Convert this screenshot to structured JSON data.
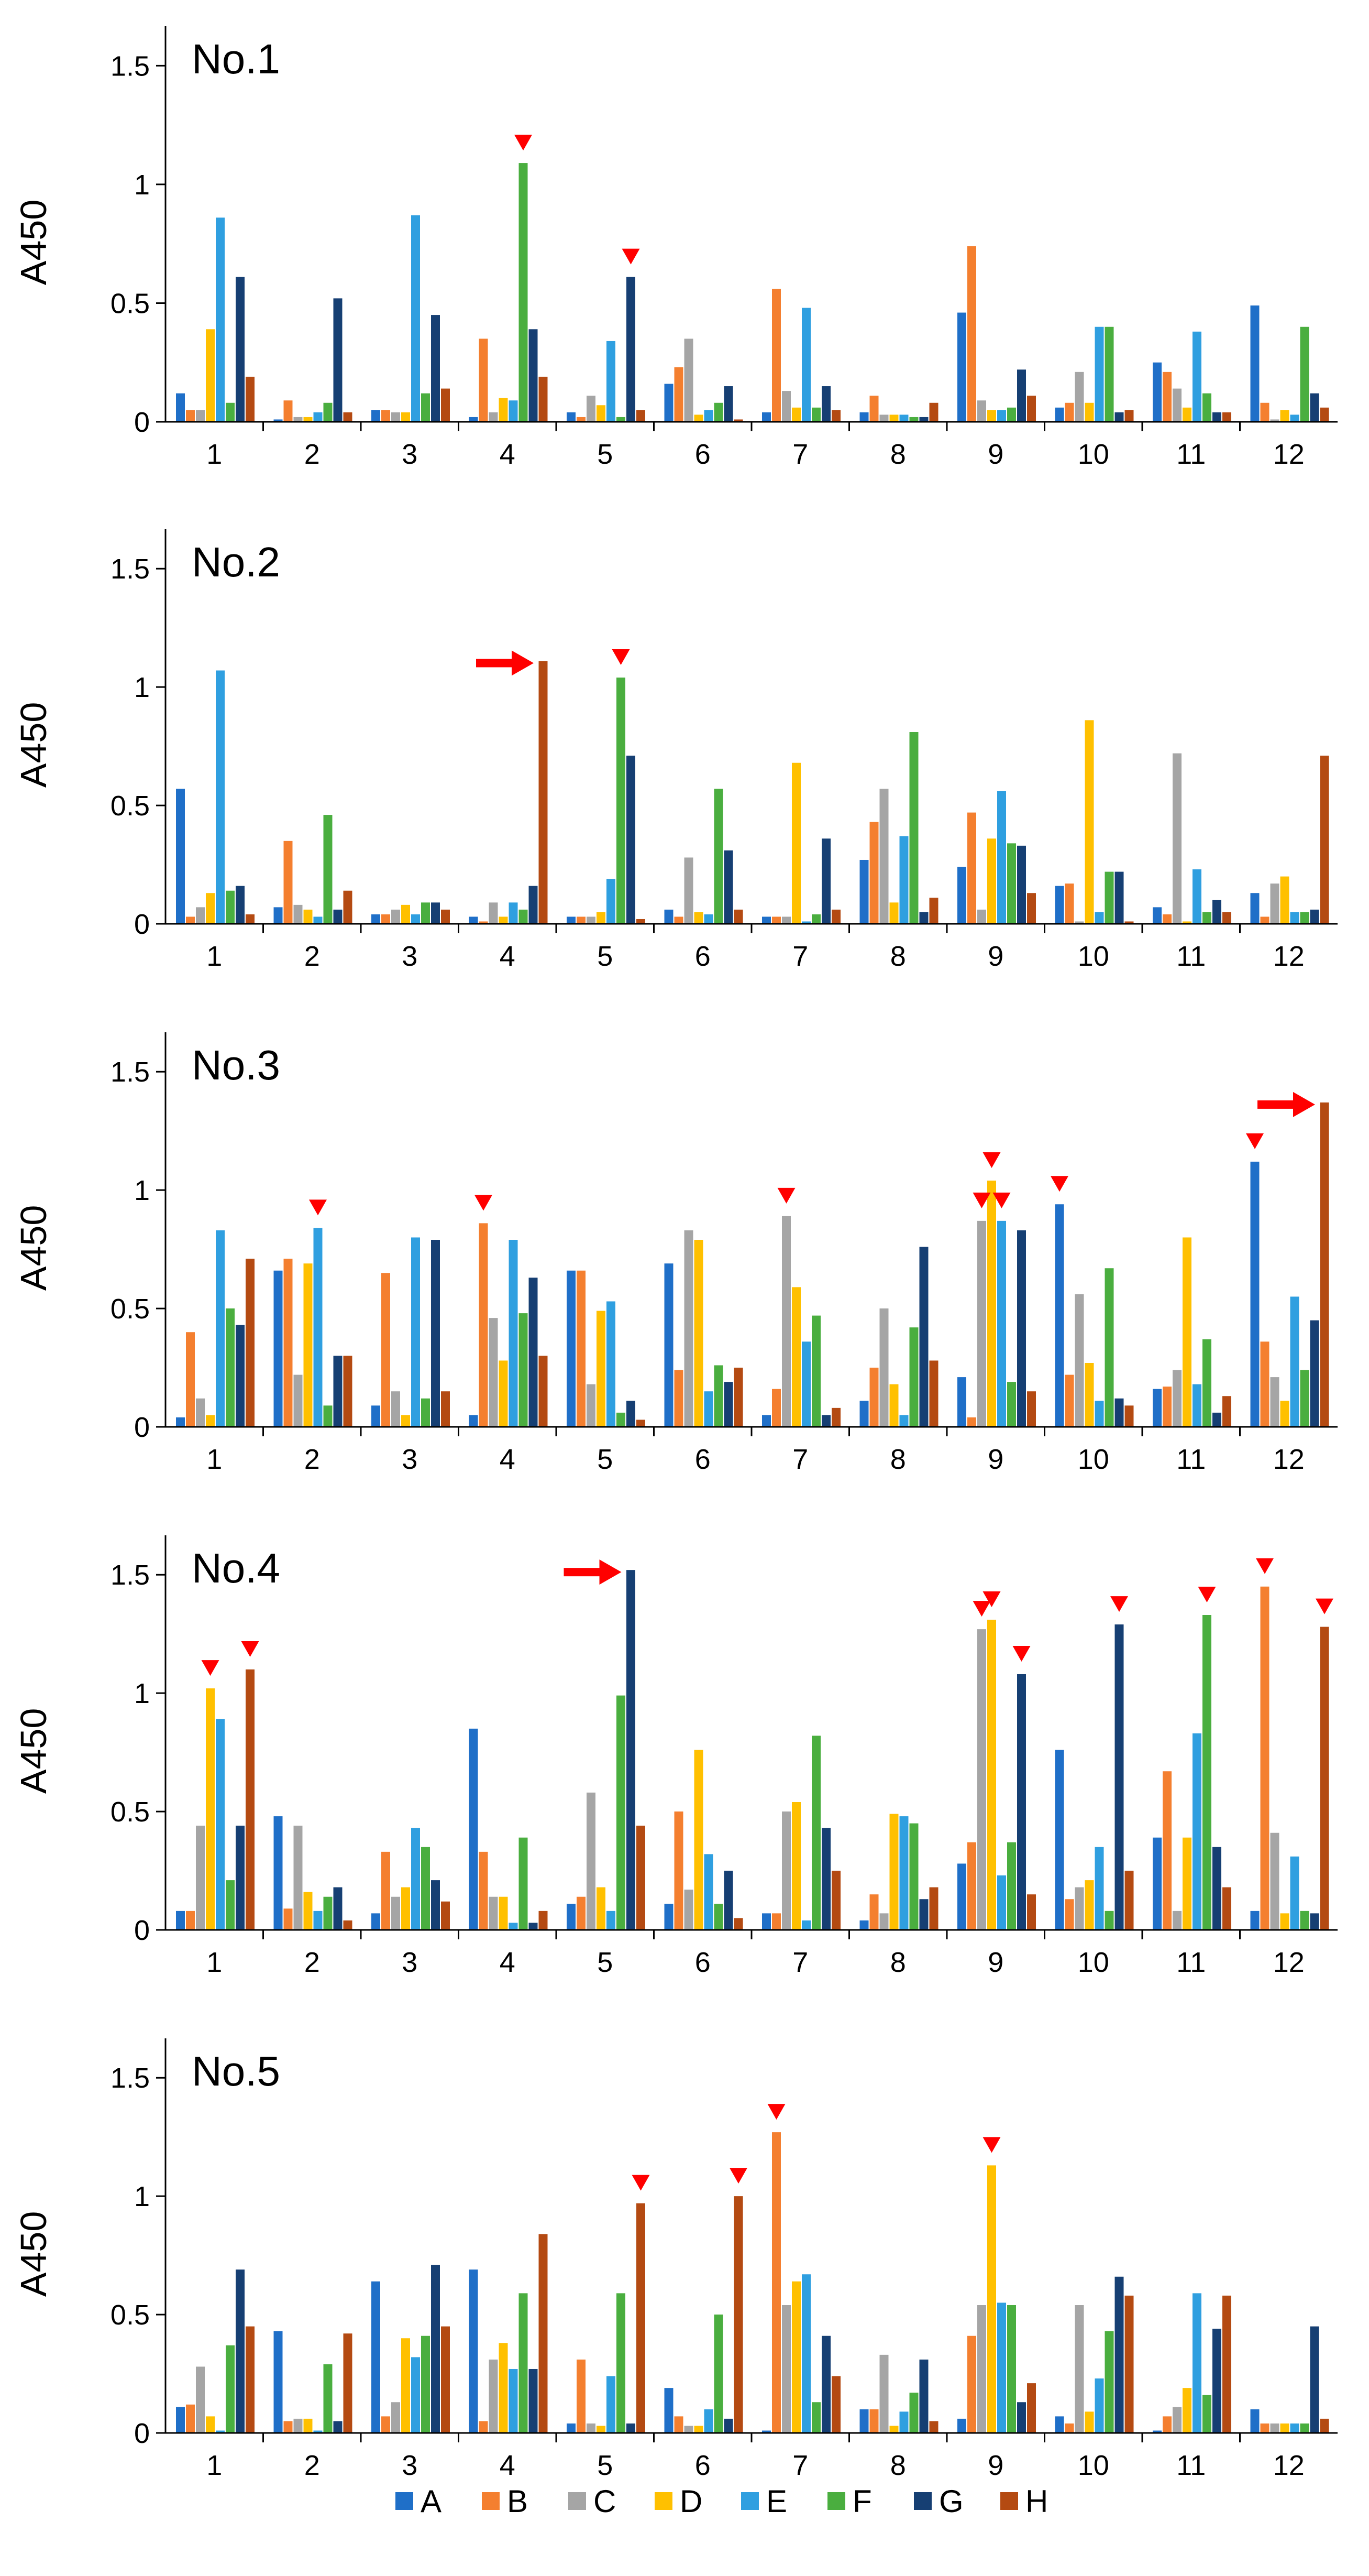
{
  "colors": {
    "A": "#1f6fc8",
    "B": "#f47f2f",
    "C": "#a5a5a5",
    "D": "#ffc000",
    "E": "#2f9fe0",
    "F": "#4aae3f",
    "G": "#163f73",
    "H": "#b44a12",
    "marker": "#ff0000",
    "axis": "#000000"
  },
  "chart_data": [
    {
      "type": "bar",
      "title": "No.1",
      "ylabel": "A450",
      "ylim": [
        0,
        1.6
      ],
      "yticks": [
        "0",
        "0.5",
        "1",
        "1.5"
      ],
      "categories": [
        "1",
        "2",
        "3",
        "4",
        "5",
        "6",
        "7",
        "8",
        "9",
        "10",
        "11",
        "12"
      ],
      "series": [
        {
          "name": "A",
          "values": [
            0.12,
            0.01,
            0.05,
            0.02,
            0.04,
            0.16,
            0.04,
            0.04,
            0.46,
            0.06,
            0.25,
            0.49
          ]
        },
        {
          "name": "B",
          "values": [
            0.05,
            0.09,
            0.05,
            0.35,
            0.02,
            0.23,
            0.56,
            0.11,
            0.74,
            0.08,
            0.21,
            0.08
          ]
        },
        {
          "name": "C",
          "values": [
            0.05,
            0.02,
            0.04,
            0.04,
            0.11,
            0.35,
            0.13,
            0.03,
            0.09,
            0.21,
            0.14,
            0.01
          ]
        },
        {
          "name": "D",
          "values": [
            0.39,
            0.02,
            0.04,
            0.1,
            0.07,
            0.03,
            0.06,
            0.03,
            0.05,
            0.08,
            0.06,
            0.05
          ]
        },
        {
          "name": "E",
          "values": [
            0.86,
            0.04,
            0.87,
            0.09,
            0.34,
            0.05,
            0.48,
            0.03,
            0.05,
            0.4,
            0.38,
            0.03
          ]
        },
        {
          "name": "F",
          "values": [
            0.08,
            0.08,
            0.12,
            1.09,
            0.02,
            0.08,
            0.06,
            0.02,
            0.06,
            0.4,
            0.12,
            0.4
          ]
        },
        {
          "name": "G",
          "values": [
            0.61,
            0.52,
            0.45,
            0.39,
            0.61,
            0.15,
            0.15,
            0.02,
            0.22,
            0.04,
            0.04,
            0.12
          ]
        },
        {
          "name": "H",
          "values": [
            0.19,
            0.04,
            0.14,
            0.19,
            0.05,
            0.01,
            0.05,
            0.08,
            0.11,
            0.05,
            0.04,
            0.06
          ]
        }
      ],
      "markers": [
        {
          "type": "triangle",
          "category": "4",
          "series": "F"
        },
        {
          "type": "triangle",
          "category": "5",
          "series": "G"
        }
      ]
    },
    {
      "type": "bar",
      "title": "No.2",
      "ylabel": "A450",
      "ylim": [
        0,
        1.6
      ],
      "yticks": [
        "0",
        "0.5",
        "1",
        "1.5"
      ],
      "categories": [
        "1",
        "2",
        "3",
        "4",
        "5",
        "6",
        "7",
        "8",
        "9",
        "10",
        "11",
        "12"
      ],
      "series": [
        {
          "name": "A",
          "values": [
            0.57,
            0.07,
            0.04,
            0.03,
            0.03,
            0.06,
            0.03,
            0.27,
            0.24,
            0.16,
            0.07,
            0.13
          ]
        },
        {
          "name": "B",
          "values": [
            0.03,
            0.35,
            0.04,
            0.01,
            0.03,
            0.03,
            0.03,
            0.43,
            0.47,
            0.17,
            0.04,
            0.03
          ]
        },
        {
          "name": "C",
          "values": [
            0.07,
            0.08,
            0.06,
            0.09,
            0.03,
            0.28,
            0.03,
            0.57,
            0.06,
            0.01,
            0.72,
            0.17
          ]
        },
        {
          "name": "D",
          "values": [
            0.13,
            0.06,
            0.08,
            0.03,
            0.05,
            0.05,
            0.68,
            0.09,
            0.36,
            0.86,
            0.01,
            0.2
          ]
        },
        {
          "name": "E",
          "values": [
            1.07,
            0.03,
            0.04,
            0.09,
            0.19,
            0.04,
            0.01,
            0.37,
            0.56,
            0.05,
            0.23,
            0.05
          ]
        },
        {
          "name": "F",
          "values": [
            0.14,
            0.46,
            0.09,
            0.06,
            1.04,
            0.57,
            0.04,
            0.81,
            0.34,
            0.22,
            0.05,
            0.05
          ]
        },
        {
          "name": "G",
          "values": [
            0.16,
            0.06,
            0.09,
            0.16,
            0.71,
            0.31,
            0.36,
            0.05,
            0.33,
            0.22,
            0.1,
            0.06
          ]
        },
        {
          "name": "H",
          "values": [
            0.04,
            0.14,
            0.06,
            1.11,
            0.02,
            0.06,
            0.06,
            0.11,
            0.13,
            0.01,
            0.05,
            0.71
          ]
        }
      ],
      "markers": [
        {
          "type": "arrow",
          "category": "4",
          "series": "H"
        },
        {
          "type": "triangle",
          "category": "5",
          "series": "F"
        }
      ]
    },
    {
      "type": "bar",
      "title": "No.3",
      "ylabel": "A450",
      "ylim": [
        0,
        1.6
      ],
      "yticks": [
        "0",
        "0.5",
        "1",
        "1.5"
      ],
      "categories": [
        "1",
        "2",
        "3",
        "4",
        "5",
        "6",
        "7",
        "8",
        "9",
        "10",
        "11",
        "12"
      ],
      "series": [
        {
          "name": "A",
          "values": [
            0.04,
            0.66,
            0.09,
            0.05,
            0.66,
            0.69,
            0.05,
            0.11,
            0.21,
            0.94,
            0.16,
            1.12
          ]
        },
        {
          "name": "B",
          "values": [
            0.4,
            0.71,
            0.65,
            0.86,
            0.66,
            0.24,
            0.16,
            0.25,
            0.04,
            0.22,
            0.17,
            0.36
          ]
        },
        {
          "name": "C",
          "values": [
            0.12,
            0.22,
            0.15,
            0.46,
            0.18,
            0.83,
            0.89,
            0.5,
            0.87,
            0.56,
            0.24,
            0.21
          ]
        },
        {
          "name": "D",
          "values": [
            0.05,
            0.69,
            0.05,
            0.28,
            0.49,
            0.79,
            0.59,
            0.18,
            1.04,
            0.27,
            0.8,
            0.11
          ]
        },
        {
          "name": "E",
          "values": [
            0.83,
            0.84,
            0.8,
            0.79,
            0.53,
            0.15,
            0.36,
            0.05,
            0.87,
            0.11,
            0.18,
            0.55
          ]
        },
        {
          "name": "F",
          "values": [
            0.5,
            0.09,
            0.12,
            0.48,
            0.06,
            0.26,
            0.47,
            0.42,
            0.19,
            0.67,
            0.37,
            0.24
          ]
        },
        {
          "name": "G",
          "values": [
            0.43,
            0.3,
            0.79,
            0.63,
            0.11,
            0.19,
            0.05,
            0.76,
            0.83,
            0.12,
            0.06,
            0.45
          ]
        },
        {
          "name": "H",
          "values": [
            0.71,
            0.3,
            0.15,
            0.3,
            0.03,
            0.25,
            0.08,
            0.28,
            0.15,
            0.09,
            0.13,
            1.37
          ]
        }
      ],
      "markers": [
        {
          "type": "triangle",
          "category": "2",
          "series": "E"
        },
        {
          "type": "triangle",
          "category": "4",
          "series": "B"
        },
        {
          "type": "triangle",
          "category": "7",
          "series": "C"
        },
        {
          "type": "triangle",
          "category": "9",
          "series": "C"
        },
        {
          "type": "triangle",
          "category": "9",
          "series": "D"
        },
        {
          "type": "triangle",
          "category": "9",
          "series": "E"
        },
        {
          "type": "triangle",
          "category": "10",
          "series": "A"
        },
        {
          "type": "triangle",
          "category": "12",
          "series": "A"
        },
        {
          "type": "arrow",
          "category": "12",
          "series": "H"
        }
      ]
    },
    {
      "type": "bar",
      "title": "No.4",
      "ylabel": "A450",
      "ylim": [
        0,
        1.6
      ],
      "yticks": [
        "0",
        "0.5",
        "1",
        "1.5"
      ],
      "categories": [
        "1",
        "2",
        "3",
        "4",
        "5",
        "6",
        "7",
        "8",
        "9",
        "10",
        "11",
        "12"
      ],
      "series": [
        {
          "name": "A",
          "values": [
            0.08,
            0.48,
            0.07,
            0.85,
            0.11,
            0.11,
            0.07,
            0.04,
            0.28,
            0.76,
            0.39,
            0.08
          ]
        },
        {
          "name": "B",
          "values": [
            0.08,
            0.09,
            0.33,
            0.33,
            0.14,
            0.5,
            0.07,
            0.15,
            0.37,
            0.13,
            0.67,
            1.45
          ]
        },
        {
          "name": "C",
          "values": [
            0.44,
            0.44,
            0.14,
            0.14,
            0.58,
            0.17,
            0.5,
            0.07,
            1.27,
            0.18,
            0.08,
            0.41
          ]
        },
        {
          "name": "D",
          "values": [
            1.02,
            0.16,
            0.18,
            0.14,
            0.18,
            0.76,
            0.54,
            0.49,
            1.31,
            0.21,
            0.39,
            0.07
          ]
        },
        {
          "name": "E",
          "values": [
            0.89,
            0.08,
            0.43,
            0.03,
            0.08,
            0.32,
            0.04,
            0.48,
            0.23,
            0.35,
            0.83,
            0.31
          ]
        },
        {
          "name": "F",
          "values": [
            0.21,
            0.14,
            0.35,
            0.39,
            0.99,
            0.11,
            0.82,
            0.45,
            0.37,
            0.08,
            1.33,
            0.08
          ]
        },
        {
          "name": "G",
          "values": [
            0.44,
            0.18,
            0.21,
            0.03,
            1.52,
            0.25,
            0.43,
            0.13,
            1.08,
            1.29,
            0.35,
            0.07
          ]
        },
        {
          "name": "H",
          "values": [
            1.1,
            0.04,
            0.12,
            0.08,
            0.44,
            0.05,
            0.25,
            0.18,
            0.15,
            0.25,
            0.18,
            1.28
          ]
        }
      ],
      "markers": [
        {
          "type": "triangle",
          "category": "1",
          "series": "D"
        },
        {
          "type": "triangle",
          "category": "1",
          "series": "H"
        },
        {
          "type": "arrow",
          "category": "5",
          "series": "G"
        },
        {
          "type": "triangle",
          "category": "9",
          "series": "C"
        },
        {
          "type": "triangle",
          "category": "9",
          "series": "D"
        },
        {
          "type": "triangle",
          "category": "9",
          "series": "G"
        },
        {
          "type": "triangle",
          "category": "10",
          "series": "G"
        },
        {
          "type": "triangle",
          "category": "11",
          "series": "F"
        },
        {
          "type": "triangle",
          "category": "12",
          "series": "B"
        },
        {
          "type": "triangle",
          "category": "12",
          "series": "H"
        }
      ]
    },
    {
      "type": "bar",
      "title": "No.5",
      "ylabel": "A450",
      "ylim": [
        0,
        1.6
      ],
      "yticks": [
        "0",
        "0.5",
        "1",
        "1.5"
      ],
      "categories": [
        "1",
        "2",
        "3",
        "4",
        "5",
        "6",
        "7",
        "8",
        "9",
        "10",
        "11",
        "12"
      ],
      "series": [
        {
          "name": "A",
          "values": [
            0.11,
            0.43,
            0.64,
            0.69,
            0.04,
            0.19,
            0.01,
            0.1,
            0.06,
            0.07,
            0.01,
            0.1
          ]
        },
        {
          "name": "B",
          "values": [
            0.12,
            0.05,
            0.07,
            0.05,
            0.31,
            0.07,
            1.27,
            0.1,
            0.41,
            0.04,
            0.07,
            0.04
          ]
        },
        {
          "name": "C",
          "values": [
            0.28,
            0.06,
            0.13,
            0.31,
            0.04,
            0.03,
            0.54,
            0.33,
            0.54,
            0.54,
            0.11,
            0.04
          ]
        },
        {
          "name": "D",
          "values": [
            0.07,
            0.06,
            0.4,
            0.38,
            0.03,
            0.03,
            0.64,
            0.03,
            1.13,
            0.09,
            0.19,
            0.04
          ]
        },
        {
          "name": "E",
          "values": [
            0.01,
            0.01,
            0.32,
            0.27,
            0.24,
            0.1,
            0.67,
            0.09,
            0.55,
            0.23,
            0.59,
            0.04
          ]
        },
        {
          "name": "F",
          "values": [
            0.37,
            0.29,
            0.41,
            0.59,
            0.59,
            0.5,
            0.13,
            0.17,
            0.54,
            0.43,
            0.16,
            0.04
          ]
        },
        {
          "name": "G",
          "values": [
            0.69,
            0.05,
            0.71,
            0.27,
            0.04,
            0.06,
            0.41,
            0.31,
            0.13,
            0.66,
            0.44,
            0.45
          ]
        },
        {
          "name": "H",
          "values": [
            0.45,
            0.42,
            0.45,
            0.84,
            0.97,
            1.0,
            0.24,
            0.05,
            0.21,
            0.58,
            0.58,
            0.06
          ]
        }
      ],
      "markers": [
        {
          "type": "triangle",
          "category": "5",
          "series": "H"
        },
        {
          "type": "triangle",
          "category": "6",
          "series": "H"
        },
        {
          "type": "triangle",
          "category": "7",
          "series": "B"
        },
        {
          "type": "triangle",
          "category": "9",
          "series": "D"
        }
      ]
    }
  ],
  "legend": {
    "placement": "bottom-center",
    "entries": [
      "A",
      "B",
      "C",
      "D",
      "E",
      "F",
      "G",
      "H"
    ]
  }
}
